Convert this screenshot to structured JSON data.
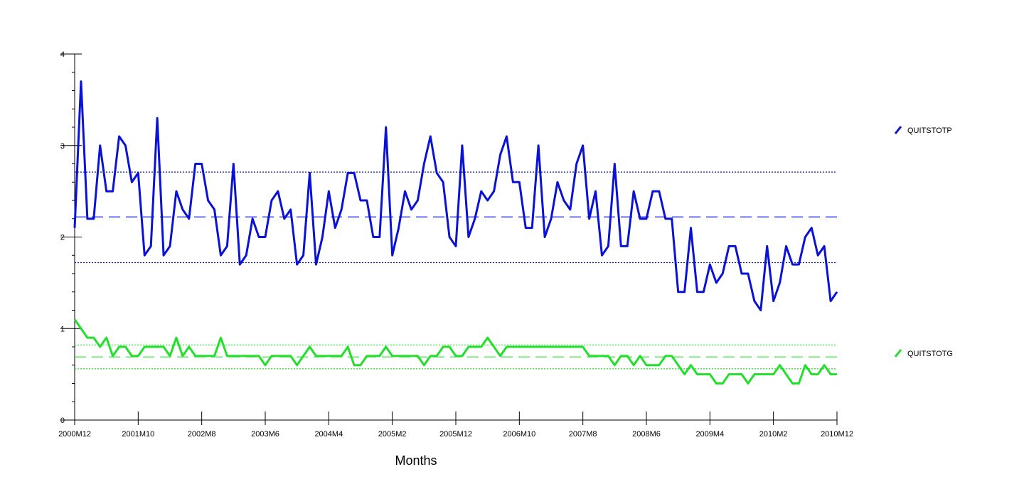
{
  "chart_data": {
    "type": "line",
    "title": "",
    "xlabel": "Months",
    "ylabel": "",
    "ylim": [
      0,
      4
    ],
    "yticks": [
      0,
      1,
      2,
      3,
      4
    ],
    "xticks": [
      "2000M12",
      "2001M10",
      "2002M8",
      "2003M6",
      "2004M4",
      "2005M2",
      "2005M12",
      "2006M10",
      "2007M8",
      "2008M6",
      "2009M4",
      "2010M2",
      "2010M12"
    ],
    "x_start": "2000M12",
    "x_end": "2010M12",
    "grid": false,
    "legend": "right",
    "series": [
      {
        "name": "QUITSTOTP",
        "color": "#0a12d6",
        "mean": 2.22,
        "band": [
          1.72,
          2.71
        ],
        "values": [
          2.1,
          3.7,
          2.2,
          2.2,
          3.0,
          2.5,
          2.5,
          3.1,
          3.0,
          2.6,
          2.7,
          1.8,
          1.9,
          3.3,
          1.8,
          1.9,
          2.5,
          2.3,
          2.2,
          2.8,
          2.8,
          2.4,
          2.3,
          1.8,
          1.9,
          2.8,
          1.7,
          1.8,
          2.2,
          2.0,
          2.0,
          2.4,
          2.5,
          2.2,
          2.3,
          1.7,
          1.8,
          2.7,
          1.7,
          2.0,
          2.5,
          2.1,
          2.3,
          2.7,
          2.7,
          2.4,
          2.4,
          2.0,
          2.0,
          3.2,
          1.8,
          2.1,
          2.5,
          2.3,
          2.4,
          2.8,
          3.1,
          2.7,
          2.6,
          2.0,
          1.9,
          3.0,
          2.0,
          2.2,
          2.5,
          2.4,
          2.5,
          2.9,
          3.1,
          2.6,
          2.6,
          2.1,
          2.1,
          3.0,
          2.0,
          2.2,
          2.6,
          2.4,
          2.3,
          2.8,
          3.0,
          2.2,
          2.5,
          1.8,
          1.9,
          2.8,
          1.9,
          1.9,
          2.5,
          2.2,
          2.2,
          2.5,
          2.5,
          2.2,
          2.2,
          1.4,
          1.4,
          2.1,
          1.4,
          1.4,
          1.7,
          1.5,
          1.6,
          1.9,
          1.9,
          1.6,
          1.6,
          1.3,
          1.2,
          1.9,
          1.3,
          1.5,
          1.9,
          1.7,
          1.7,
          2.0,
          2.1,
          1.8,
          1.9,
          1.3,
          1.4
        ]
      },
      {
        "name": "QUITSTOTG",
        "color": "#22e02a",
        "mean": 0.69,
        "band": [
          0.56,
          0.82
        ],
        "values": [
          1.1,
          1.0,
          0.9,
          0.9,
          0.8,
          0.9,
          0.7,
          0.8,
          0.8,
          0.7,
          0.7,
          0.8,
          0.8,
          0.8,
          0.8,
          0.7,
          0.9,
          0.7,
          0.8,
          0.7,
          0.7,
          0.7,
          0.7,
          0.9,
          0.7,
          0.7,
          0.7,
          0.7,
          0.7,
          0.7,
          0.6,
          0.7,
          0.7,
          0.7,
          0.7,
          0.6,
          0.7,
          0.8,
          0.7,
          0.7,
          0.7,
          0.7,
          0.7,
          0.8,
          0.6,
          0.6,
          0.7,
          0.7,
          0.7,
          0.8,
          0.7,
          0.7,
          0.7,
          0.7,
          0.7,
          0.6,
          0.7,
          0.7,
          0.8,
          0.8,
          0.7,
          0.7,
          0.8,
          0.8,
          0.8,
          0.9,
          0.8,
          0.7,
          0.8,
          0.8,
          0.8,
          0.8,
          0.8,
          0.8,
          0.8,
          0.8,
          0.8,
          0.8,
          0.8,
          0.8,
          0.8,
          0.7,
          0.7,
          0.7,
          0.7,
          0.6,
          0.7,
          0.7,
          0.6,
          0.7,
          0.6,
          0.6,
          0.6,
          0.7,
          0.7,
          0.6,
          0.5,
          0.6,
          0.5,
          0.5,
          0.5,
          0.4,
          0.4,
          0.5,
          0.5,
          0.5,
          0.4,
          0.5,
          0.5,
          0.5,
          0.5,
          0.6,
          0.5,
          0.4,
          0.4,
          0.6,
          0.5,
          0.5,
          0.6,
          0.5,
          0.5
        ]
      }
    ]
  }
}
